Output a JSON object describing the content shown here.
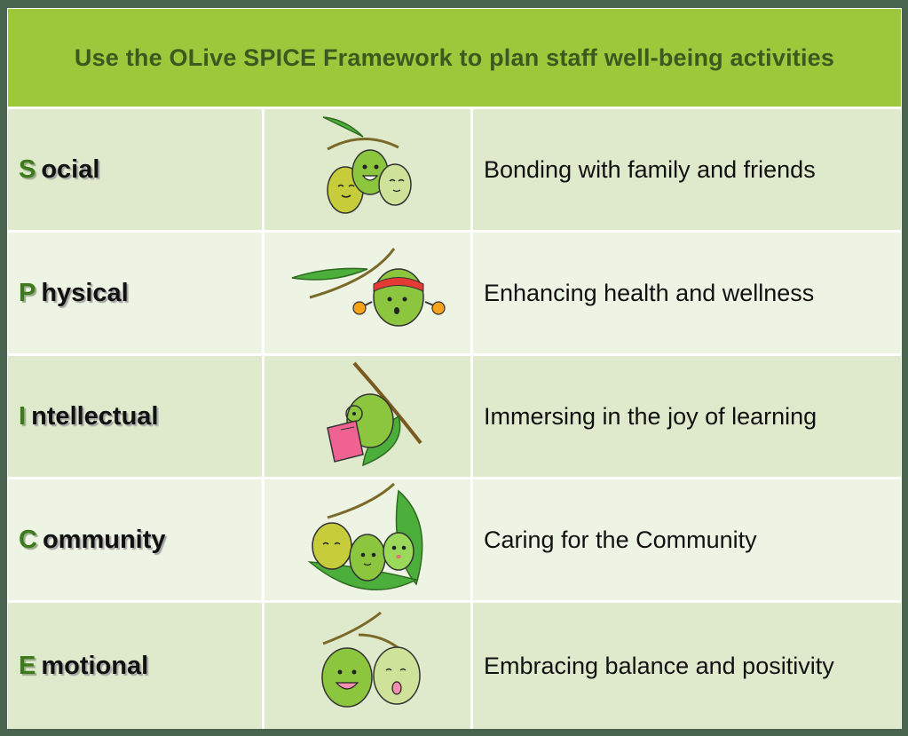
{
  "header": {
    "title": "Use the OLive SPICE Framework to plan staff well-being activities"
  },
  "rows": [
    {
      "letter": "S",
      "rest": "ocial",
      "description": "Bonding with family and friends",
      "illustration": "social-olives-illustration"
    },
    {
      "letter": "P",
      "rest": "hysical",
      "description": "Enhancing health and wellness",
      "illustration": "physical-olive-illustration"
    },
    {
      "letter": "I",
      "rest": "ntellectual",
      "description": "Immersing in the joy of learning",
      "illustration": "intellectual-olive-illustration"
    },
    {
      "letter": "C",
      "rest": "ommunity",
      "description": "Caring for the Community",
      "illustration": "community-olives-illustration"
    },
    {
      "letter": "E",
      "rest": "motional",
      "description": "Embracing balance and positivity",
      "illustration": "emotional-olives-illustration"
    }
  ],
  "colors": {
    "header": "#9dc83b",
    "title": "#3a5a1f",
    "letter": "#3c7a1c",
    "row_dark": "#dfeacc",
    "row_light": "#eef4e4",
    "border": "#48644f"
  }
}
